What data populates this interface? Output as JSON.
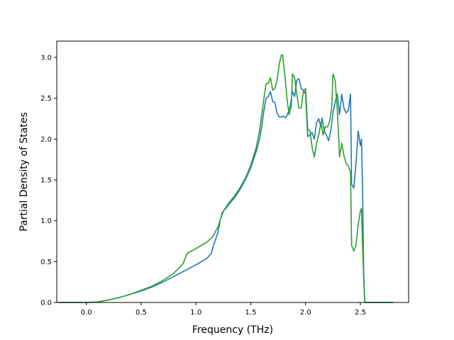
{
  "chart_data": {
    "type": "line",
    "title": "",
    "xlabel": "Frequency (THz)",
    "ylabel": "Partial Density of States",
    "xlim": [
      -0.27,
      2.94
    ],
    "ylim": [
      0.0,
      3.2
    ],
    "xticks": [
      0.0,
      0.5,
      1.0,
      1.5,
      2.0,
      2.5
    ],
    "xtick_labels": [
      "0.0",
      "0.5",
      "1.0",
      "1.5",
      "2.0",
      "2.5"
    ],
    "yticks": [
      0.0,
      0.5,
      1.0,
      1.5,
      2.0,
      2.5,
      3.0
    ],
    "ytick_labels": [
      "0.0",
      "0.5",
      "1.0",
      "1.5",
      "2.0",
      "2.5",
      "3.0"
    ],
    "grid": false,
    "legend": "none",
    "series": [
      {
        "color": "#1f77b4",
        "points": [
          [
            -0.26,
            0.0
          ],
          [
            0.0,
            0.0
          ],
          [
            0.1,
            0.005
          ],
          [
            0.2,
            0.03
          ],
          [
            0.3,
            0.06
          ],
          [
            0.4,
            0.1
          ],
          [
            0.5,
            0.14
          ],
          [
            0.6,
            0.19
          ],
          [
            0.7,
            0.25
          ],
          [
            0.8,
            0.32
          ],
          [
            0.9,
            0.39
          ],
          [
            1.0,
            0.46
          ],
          [
            1.1,
            0.54
          ],
          [
            1.14,
            0.6
          ],
          [
            1.16,
            0.7
          ],
          [
            1.2,
            0.85
          ],
          [
            1.22,
            1.0
          ],
          [
            1.24,
            1.1
          ],
          [
            1.3,
            1.2
          ],
          [
            1.35,
            1.28
          ],
          [
            1.4,
            1.38
          ],
          [
            1.45,
            1.5
          ],
          [
            1.5,
            1.65
          ],
          [
            1.55,
            1.85
          ],
          [
            1.58,
            2.0
          ],
          [
            1.6,
            2.15
          ],
          [
            1.62,
            2.35
          ],
          [
            1.64,
            2.5
          ],
          [
            1.66,
            2.52
          ],
          [
            1.68,
            2.58
          ],
          [
            1.7,
            2.46
          ],
          [
            1.72,
            2.45
          ],
          [
            1.74,
            2.32
          ],
          [
            1.76,
            2.27
          ],
          [
            1.78,
            2.27
          ],
          [
            1.8,
            2.28
          ],
          [
            1.82,
            2.26
          ],
          [
            1.84,
            2.32
          ],
          [
            1.86,
            2.4
          ],
          [
            1.88,
            2.58
          ],
          [
            1.9,
            2.52
          ],
          [
            1.92,
            2.72
          ],
          [
            1.94,
            2.74
          ],
          [
            1.96,
            2.62
          ],
          [
            1.98,
            2.6
          ],
          [
            2.0,
            2.55
          ],
          [
            2.02,
            2.03
          ],
          [
            2.04,
            2.05
          ],
          [
            2.06,
            2.08
          ],
          [
            2.08,
            2.0
          ],
          [
            2.1,
            2.2
          ],
          [
            2.12,
            2.25
          ],
          [
            2.14,
            2.15
          ],
          [
            2.15,
            2.26
          ],
          [
            2.17,
            2.1
          ],
          [
            2.19,
            2.05
          ],
          [
            2.21,
            1.98
          ],
          [
            2.23,
            2.1
          ],
          [
            2.25,
            2.32
          ],
          [
            2.27,
            2.45
          ],
          [
            2.29,
            2.55
          ],
          [
            2.31,
            2.3
          ],
          [
            2.33,
            2.55
          ],
          [
            2.35,
            2.38
          ],
          [
            2.37,
            2.32
          ],
          [
            2.39,
            2.35
          ],
          [
            2.41,
            2.55
          ],
          [
            2.42,
            1.45
          ],
          [
            2.44,
            1.4
          ],
          [
            2.46,
            1.7
          ],
          [
            2.48,
            2.1
          ],
          [
            2.5,
            1.92
          ],
          [
            2.51,
            2.0
          ],
          [
            2.52,
            1.4
          ],
          [
            2.53,
            0.4
          ],
          [
            2.54,
            0.0
          ],
          [
            2.8,
            0.0
          ]
        ]
      },
      {
        "color": "#2ca02c",
        "points": [
          [
            -0.26,
            0.0
          ],
          [
            0.0,
            0.0
          ],
          [
            0.1,
            0.005
          ],
          [
            0.2,
            0.03
          ],
          [
            0.3,
            0.06
          ],
          [
            0.4,
            0.1
          ],
          [
            0.5,
            0.15
          ],
          [
            0.6,
            0.2
          ],
          [
            0.7,
            0.27
          ],
          [
            0.8,
            0.36
          ],
          [
            0.88,
            0.47
          ],
          [
            0.92,
            0.6
          ],
          [
            1.0,
            0.66
          ],
          [
            1.1,
            0.74
          ],
          [
            1.15,
            0.8
          ],
          [
            1.2,
            0.92
          ],
          [
            1.23,
            1.05
          ],
          [
            1.26,
            1.14
          ],
          [
            1.3,
            1.22
          ],
          [
            1.35,
            1.3
          ],
          [
            1.4,
            1.4
          ],
          [
            1.45,
            1.52
          ],
          [
            1.5,
            1.68
          ],
          [
            1.55,
            1.9
          ],
          [
            1.58,
            2.1
          ],
          [
            1.6,
            2.3
          ],
          [
            1.62,
            2.5
          ],
          [
            1.64,
            2.68
          ],
          [
            1.66,
            2.68
          ],
          [
            1.68,
            2.75
          ],
          [
            1.7,
            2.6
          ],
          [
            1.72,
            2.62
          ],
          [
            1.74,
            2.72
          ],
          [
            1.76,
            2.92
          ],
          [
            1.78,
            3.03
          ],
          [
            1.79,
            3.03
          ],
          [
            1.81,
            2.8
          ],
          [
            1.83,
            2.5
          ],
          [
            1.85,
            2.3
          ],
          [
            1.87,
            2.4
          ],
          [
            1.88,
            2.8
          ],
          [
            1.9,
            2.75
          ],
          [
            1.92,
            2.55
          ],
          [
            1.94,
            2.38
          ],
          [
            1.96,
            2.38
          ],
          [
            1.98,
            2.58
          ],
          [
            2.0,
            2.62
          ],
          [
            2.02,
            2.12
          ],
          [
            2.04,
            2.1
          ],
          [
            2.06,
            1.9
          ],
          [
            2.08,
            1.78
          ],
          [
            2.1,
            1.95
          ],
          [
            2.12,
            2.05
          ],
          [
            2.14,
            2.2
          ],
          [
            2.16,
            2.05
          ],
          [
            2.18,
            2.15
          ],
          [
            2.2,
            2.15
          ],
          [
            2.22,
            2.22
          ],
          [
            2.24,
            2.4
          ],
          [
            2.25,
            2.8
          ],
          [
            2.27,
            2.72
          ],
          [
            2.29,
            2.35
          ],
          [
            2.31,
            1.78
          ],
          [
            2.33,
            1.95
          ],
          [
            2.35,
            1.8
          ],
          [
            2.37,
            1.7
          ],
          [
            2.39,
            1.67
          ],
          [
            2.41,
            1.6
          ],
          [
            2.42,
            0.7
          ],
          [
            2.44,
            0.63
          ],
          [
            2.46,
            0.7
          ],
          [
            2.48,
            0.95
          ],
          [
            2.5,
            1.12
          ],
          [
            2.51,
            1.15
          ],
          [
            2.52,
            0.7
          ],
          [
            2.53,
            0.3
          ],
          [
            2.54,
            0.0
          ],
          [
            2.8,
            0.0
          ]
        ]
      }
    ]
  }
}
